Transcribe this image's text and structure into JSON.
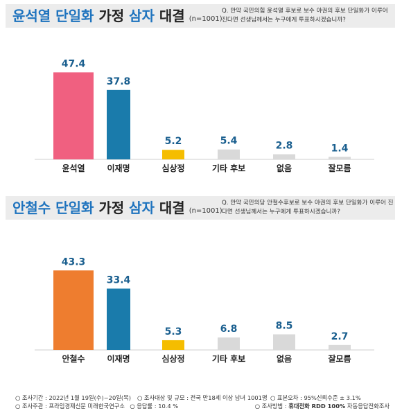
{
  "panels": [
    {
      "title_name": "윤석열 단일화",
      "title_mid": " 가정 ",
      "title_three": "삼자",
      "title_end": " 대결",
      "sample": "(n=1001)",
      "question": "Q. 만약 국민의힘 윤석열 후보로 보수 야권의 후보 단일화가 이루어 진다면 선생님께서는 누구에게 투표하시겠습니까?"
    },
    {
      "title_name": "안철수 단일화",
      "title_mid": " 가정 ",
      "title_three": "삼자",
      "title_end": " 대결",
      "sample": "(n=1001)",
      "question": "Q. 만약 국민의당 안철수후보로 보수 야권의 후보 단일화가 이루어 진다면 선생님께서는 누구에게 투표하시겠습니까?"
    }
  ],
  "chart_data": [
    {
      "type": "bar",
      "categories": [
        "윤석열",
        "이재명",
        "심상정",
        "기타 후보",
        "없음",
        "잘모름"
      ],
      "values": [
        47.4,
        37.8,
        5.2,
        5.4,
        2.8,
        1.4
      ],
      "colors": [
        "#f06080",
        "#1a7bab",
        "#f5bd00",
        "#d9d9d9",
        "#d9d9d9",
        "#d9d9d9"
      ],
      "ylim": [
        0,
        50
      ]
    },
    {
      "type": "bar",
      "categories": [
        "안철수",
        "이재명",
        "심상정",
        "기타 후보",
        "없음",
        "잘모름"
      ],
      "values": [
        43.3,
        33.4,
        5.3,
        6.8,
        8.5,
        2.7
      ],
      "colors": [
        "#ee7d2f",
        "#1a7bab",
        "#f5bd00",
        "#d9d9d9",
        "#d9d9d9",
        "#d9d9d9"
      ],
      "ylim": [
        0,
        50
      ]
    }
  ],
  "footer": {
    "row1": [
      "○ 조사기간 : 2022년 1월 19일(수)~20일(목)",
      "○ 조사대상 및 규모 : 전국 만18세 이상 남녀 1001명",
      "○ 표본오차 : 95%신뢰수준 ± 3.1%"
    ],
    "row2_a": "○ 조사주관 : 프라임경제신문 미래한국연구소",
    "row2_b": "○ 응답률 : 10.4 %",
    "row2_c_pre": "○ 조사방법 : ",
    "row2_c_bold": "휴대전화 RDD 100%",
    "row2_c_post": " 자동응답전화조사"
  }
}
